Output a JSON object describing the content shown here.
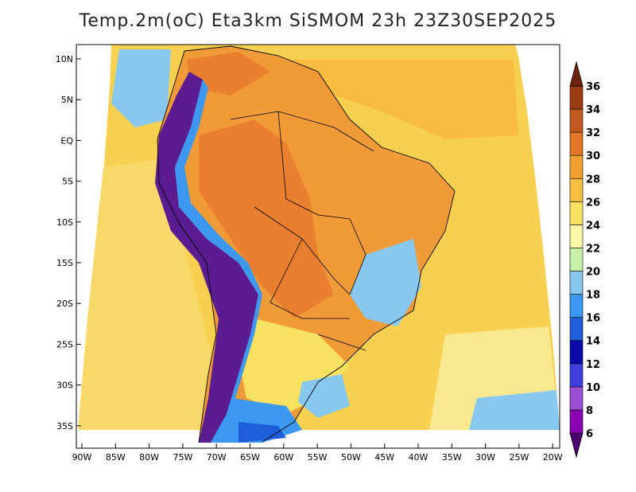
{
  "title": "Temp.2m(oC) Eta3km SiSMOM 23h 23Z30SEP2025",
  "lat_labels": [
    "10N",
    "5N",
    "EQ",
    "5S",
    "10S",
    "15S",
    "20S",
    "25S",
    "30S",
    "35S"
  ],
  "lon_labels": [
    "90W",
    "85W",
    "80W",
    "75W",
    "70W",
    "65W",
    "60W",
    "55W",
    "50W",
    "45W",
    "40W",
    "35W",
    "30W",
    "25W",
    "20W"
  ],
  "colorbar": {
    "labels": [
      "6",
      "8",
      "10",
      "12",
      "14",
      "16",
      "18",
      "20",
      "22",
      "24",
      "26",
      "28",
      "30",
      "32",
      "34",
      "36"
    ],
    "colors": [
      "#4c0070",
      "#8800b0",
      "#9a4fd0",
      "#3f3fe0",
      "#0a0aa8",
      "#1c5fd8",
      "#3c98f0",
      "#88c8f0",
      "#c8f0a8",
      "#f8f8a8",
      "#f8e060",
      "#f8c040",
      "#f0a030",
      "#e07828",
      "#c05820",
      "#9c3c14",
      "#6e2410"
    ]
  },
  "map_colors": {
    "ocean_warm": "#f8c440",
    "ocean_cool": "#f8e068",
    "land_hot": "#f09a38",
    "land_very_hot": "#e88030",
    "land_mild": "#f8e060",
    "cold_andes": "#5a1c90",
    "patagonia": "#3c98f0"
  }
}
